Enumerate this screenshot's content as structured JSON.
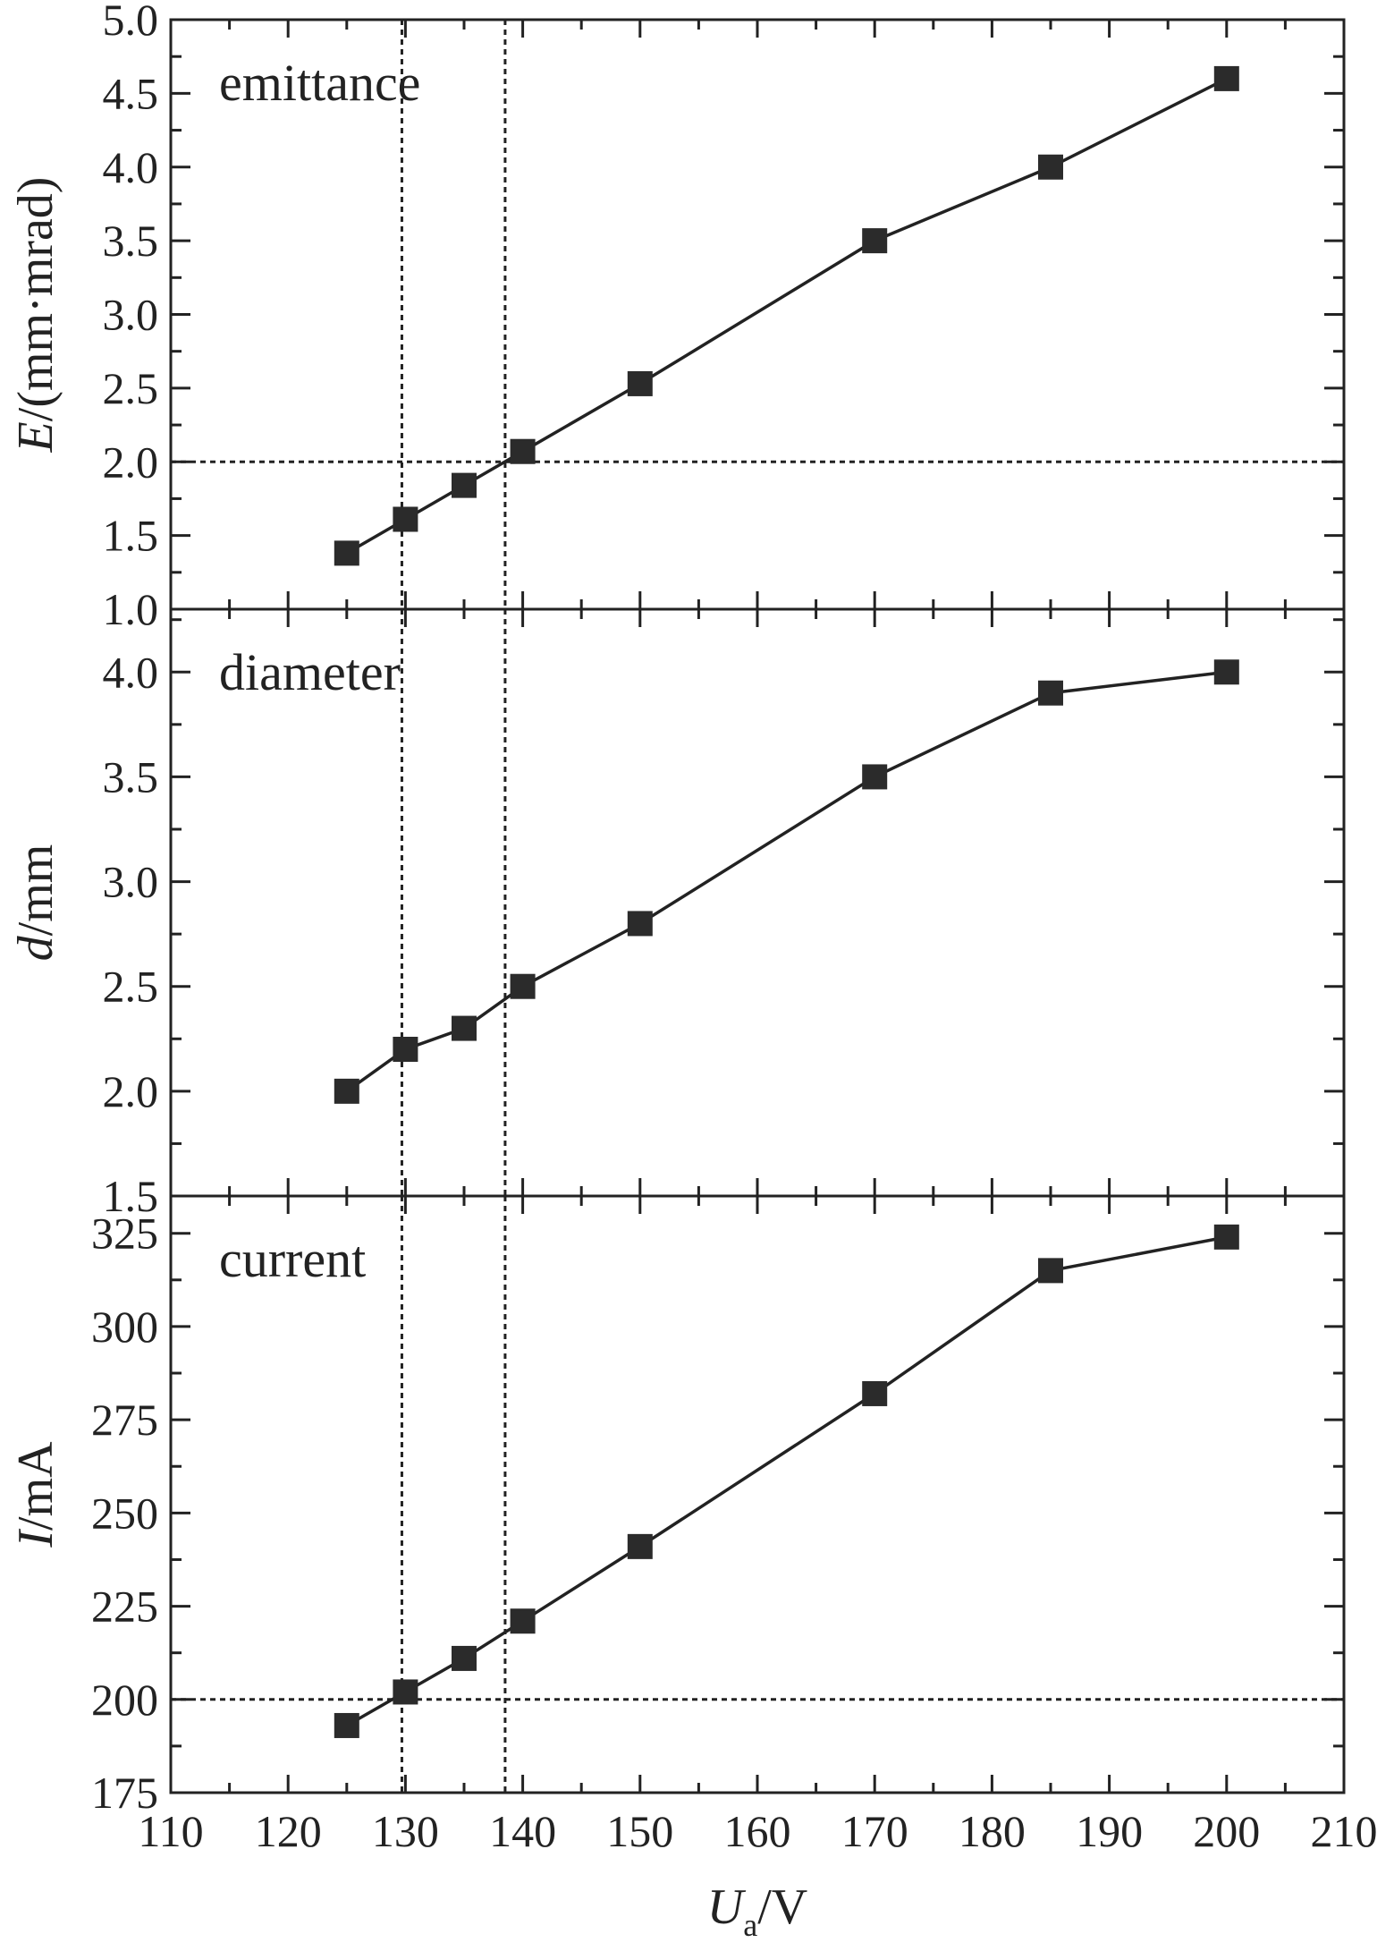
{
  "figure": {
    "xaxis": {
      "label_var": "U",
      "label_sub": "a",
      "label_unit": "/V",
      "range": [
        110,
        210
      ],
      "ticks": [
        "110",
        "120",
        "130",
        "140",
        "150",
        "160",
        "170",
        "180",
        "190",
        "200",
        "210"
      ]
    },
    "panels": [
      {
        "label": "emittance",
        "ylabel_var": "E",
        "ylabel_unit": "/(mm·mrad)",
        "yrange": [
          1.0,
          5.0
        ],
        "yticks": [
          "1.0",
          "1.5",
          "2.0",
          "2.5",
          "3.0",
          "3.5",
          "4.0",
          "4.5",
          "5.0"
        ],
        "reference_line_y": 2.0
      },
      {
        "label": "diameter",
        "ylabel_var": "d",
        "ylabel_unit": "/mm",
        "yrange": [
          1.5,
          4.3
        ],
        "yticks": [
          "1.5",
          "2.0",
          "2.5",
          "3.0",
          "3.5",
          "4.0"
        ],
        "reference_line_y": null
      },
      {
        "label": "current",
        "ylabel_var": "I",
        "ylabel_unit": "/mA",
        "yrange": [
          175,
          335
        ],
        "yticks": [
          "175",
          "200",
          "225",
          "250",
          "275",
          "300",
          "325"
        ],
        "reference_line_y": 200
      }
    ],
    "reference_lines_x": [
      129.7,
      138.5
    ],
    "colors": {
      "marker": "#2b2b2b",
      "line": "#222222",
      "axis": "#222222"
    }
  },
  "chart_data": [
    {
      "type": "line",
      "title": "emittance",
      "xlabel": "Ua/V",
      "ylabel": "E/(mm·mrad)",
      "xlim": [
        110,
        210
      ],
      "ylim": [
        1.0,
        5.0
      ],
      "x": [
        125,
        130,
        135,
        140,
        150,
        170,
        185,
        200
      ],
      "values": [
        1.38,
        1.61,
        1.84,
        2.07,
        2.53,
        3.5,
        4.0,
        4.6
      ],
      "marker": "filled-square",
      "reference_lines": {
        "y": [
          2.0
        ],
        "x": [
          129.7,
          138.5
        ]
      },
      "grid": false
    },
    {
      "type": "line",
      "title": "diameter",
      "xlabel": "Ua/V",
      "ylabel": "d/mm",
      "xlim": [
        110,
        210
      ],
      "ylim": [
        1.5,
        4.3
      ],
      "x": [
        125,
        130,
        135,
        140,
        150,
        170,
        185,
        200
      ],
      "values": [
        2.0,
        2.2,
        2.3,
        2.5,
        2.8,
        3.5,
        3.9,
        4.0
      ],
      "marker": "filled-square",
      "reference_lines": {
        "x": [
          129.7,
          138.5
        ]
      },
      "grid": false
    },
    {
      "type": "line",
      "title": "current",
      "xlabel": "Ua/V",
      "ylabel": "I/mA",
      "xlim": [
        110,
        210
      ],
      "ylim": [
        175,
        335
      ],
      "x": [
        125,
        130,
        135,
        140,
        150,
        170,
        185,
        200
      ],
      "values": [
        193,
        202,
        211,
        221,
        241,
        282,
        315,
        324
      ],
      "marker": "filled-square",
      "reference_lines": {
        "y": [
          200
        ],
        "x": [
          129.7,
          138.5
        ]
      },
      "grid": false
    }
  ]
}
